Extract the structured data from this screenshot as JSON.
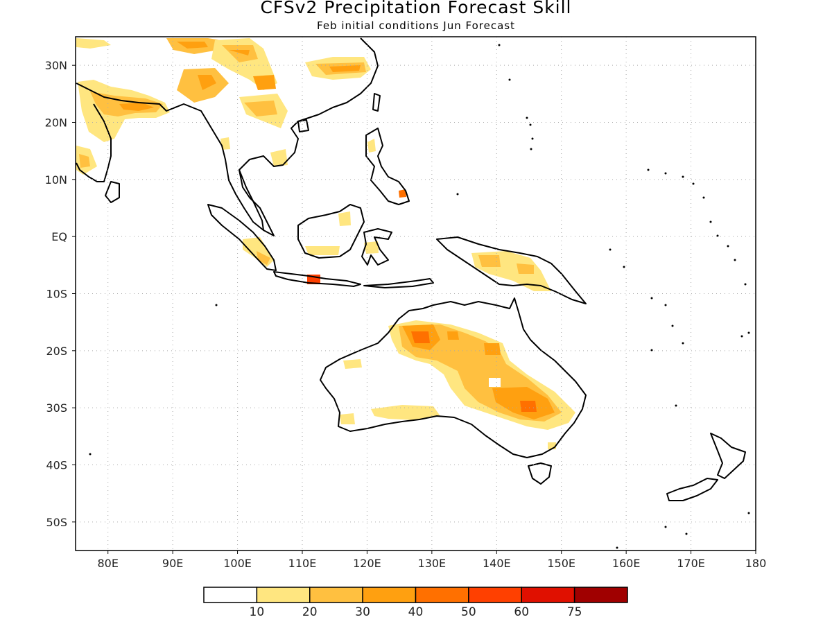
{
  "title": "CFSv2 Precipitation Forecast Skill",
  "subtitle": "Feb initial conditions  Jun Forecast",
  "map": {
    "lon_range": [
      75,
      180
    ],
    "lat_range": [
      -55,
      35
    ],
    "lon_ticks": [
      {
        "value": 80,
        "label": "80E"
      },
      {
        "value": 90,
        "label": "90E"
      },
      {
        "value": 100,
        "label": "100E"
      },
      {
        "value": 110,
        "label": "110E"
      },
      {
        "value": 120,
        "label": "120E"
      },
      {
        "value": 130,
        "label": "130E"
      },
      {
        "value": 140,
        "label": "140E"
      },
      {
        "value": 150,
        "label": "150E"
      },
      {
        "value": 160,
        "label": "160E"
      },
      {
        "value": 170,
        "label": "170E"
      },
      {
        "value": 180,
        "label": "180"
      }
    ],
    "lat_ticks": [
      {
        "value": 30,
        "label": "30N"
      },
      {
        "value": 20,
        "label": "20N"
      },
      {
        "value": 10,
        "label": "10N"
      },
      {
        "value": 0,
        "label": "EQ"
      },
      {
        "value": -10,
        "label": "10S"
      },
      {
        "value": -20,
        "label": "20S"
      },
      {
        "value": -30,
        "label": "30S"
      },
      {
        "value": -40,
        "label": "40S"
      },
      {
        "value": -50,
        "label": "50S"
      }
    ],
    "grid": "dotted"
  },
  "colorbar": {
    "colors": [
      "#ffffff",
      "#ffe680",
      "#ffc040",
      "#ffa010",
      "#ff7000",
      "#ff4000",
      "#e01000",
      "#a00000"
    ],
    "labels": [
      "10",
      "20",
      "30",
      "40",
      "50",
      "60",
      "75"
    ]
  }
}
